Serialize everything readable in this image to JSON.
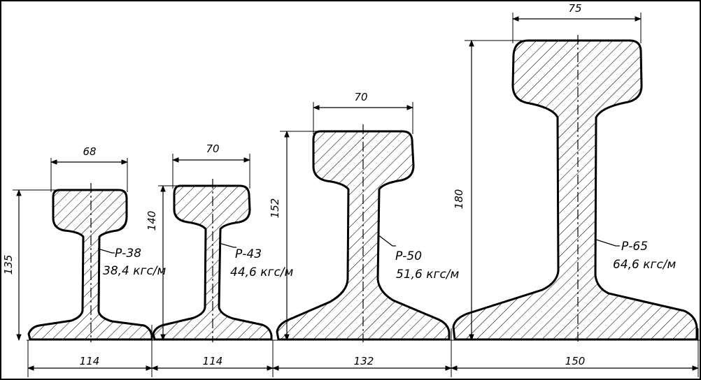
{
  "rails": [
    {
      "type": "Р-38",
      "mass": "38,4 кгс/м",
      "head_width": "68",
      "height": "135",
      "base_width": "114"
    },
    {
      "type": "Р-43",
      "mass": "44,6 кгс/м",
      "head_width": "70",
      "height": "140",
      "base_width": "114"
    },
    {
      "type": "Р-50",
      "mass": "51,6 кгс/м",
      "head_width": "70",
      "height": "152",
      "base_width": "132"
    },
    {
      "type": "Р-65",
      "mass": "64,6 кгс/м",
      "head_width": "75",
      "height": "180",
      "base_width": "150"
    }
  ]
}
